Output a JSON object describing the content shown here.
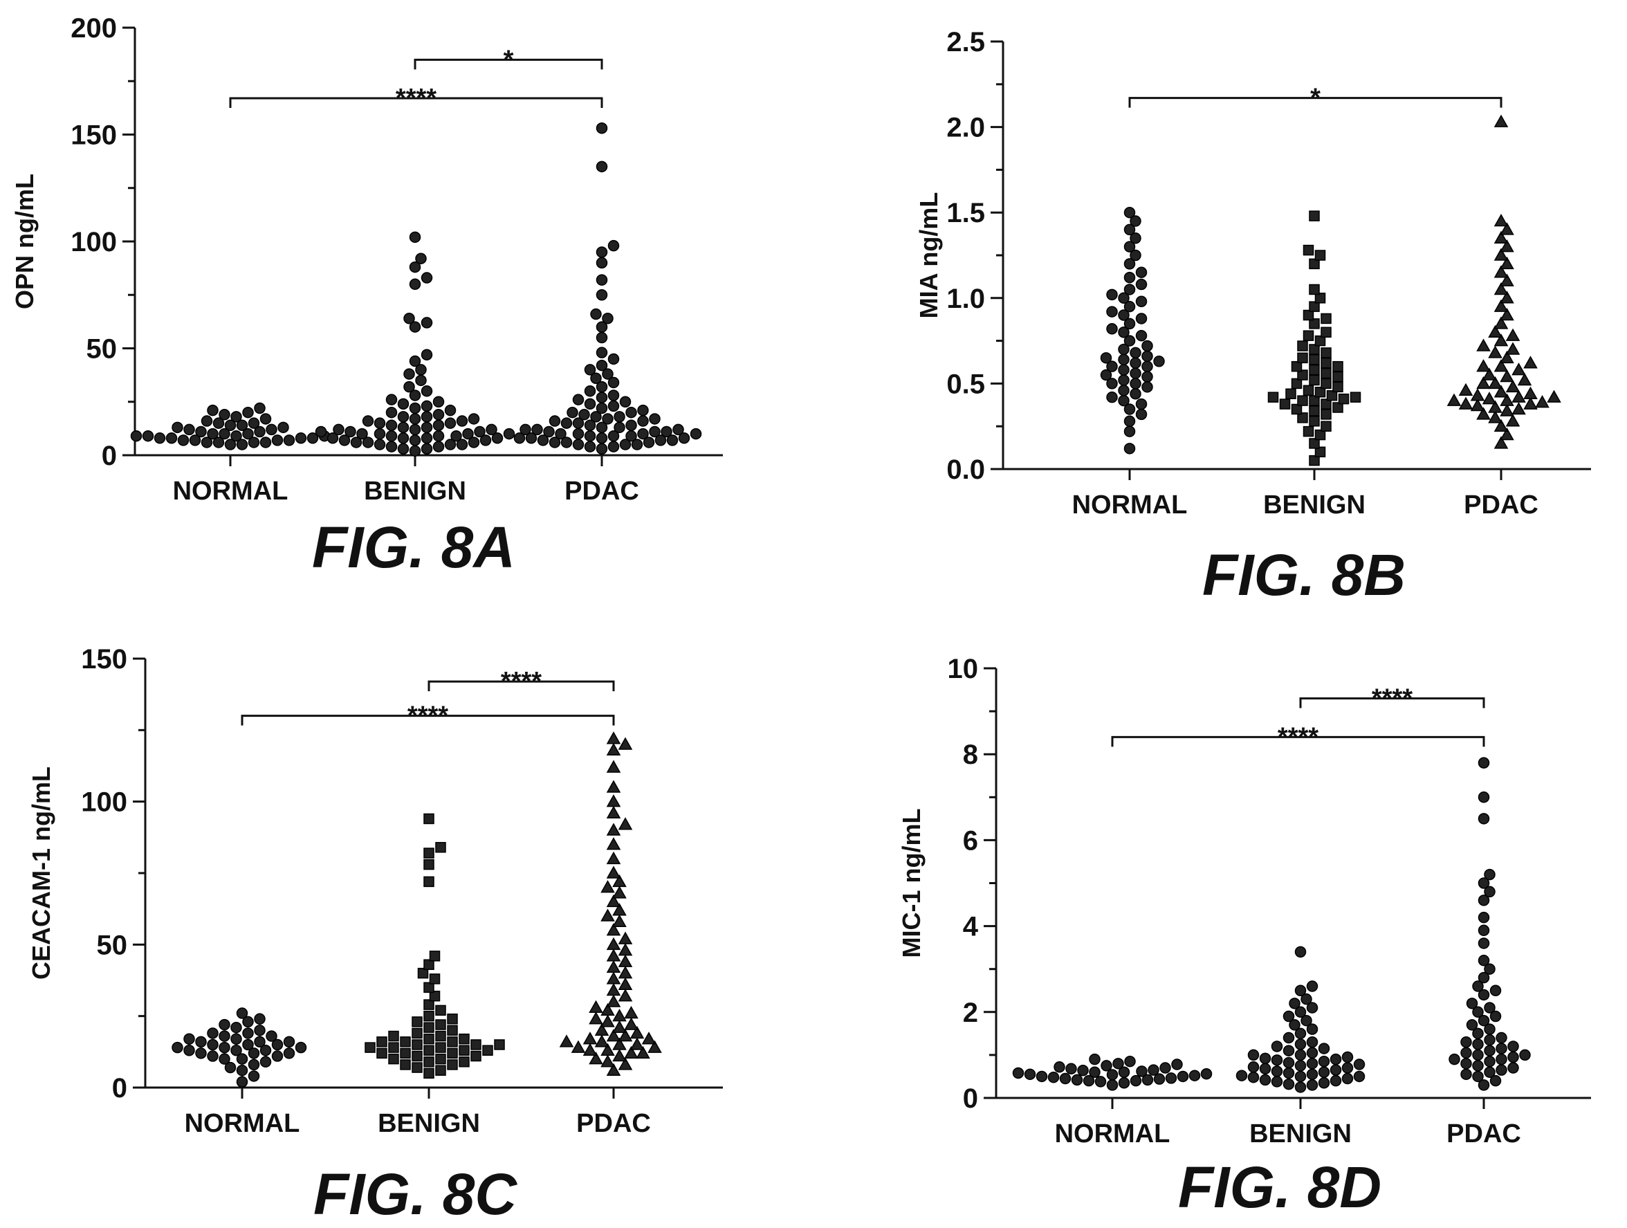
{
  "chart_data": [
    {
      "type": "scatter",
      "figure_label": "FIG. 8A",
      "ylabel": "OPN ng/mL",
      "xlabel": "",
      "ylim": [
        0,
        200
      ],
      "yticks": [
        0,
        50,
        100,
        150,
        200
      ],
      "categories": [
        "NORMAL",
        "BENIGN",
        "PDAC"
      ],
      "marker": "circle",
      "series": [
        {
          "name": "NORMAL",
          "values": [
            5,
            5,
            6,
            6,
            6,
            6,
            7,
            7,
            7,
            7,
            8,
            8,
            8,
            8,
            9,
            9,
            9,
            9,
            10,
            10,
            10,
            11,
            11,
            12,
            12,
            13,
            13,
            14,
            14,
            15,
            15,
            16,
            17,
            18,
            19,
            20,
            21,
            22
          ]
        },
        {
          "name": "BENIGN",
          "values": [
            2,
            3,
            3,
            4,
            4,
            5,
            5,
            5,
            6,
            6,
            6,
            7,
            7,
            7,
            8,
            8,
            8,
            8,
            9,
            9,
            9,
            10,
            10,
            10,
            10,
            11,
            11,
            11,
            12,
            12,
            12,
            13,
            13,
            14,
            14,
            15,
            15,
            16,
            16,
            17,
            17,
            18,
            18,
            19,
            20,
            21,
            22,
            23,
            24,
            25,
            26,
            28,
            30,
            32,
            35,
            38,
            40,
            44,
            47,
            60,
            62,
            64,
            80,
            83,
            88,
            92,
            102
          ]
        },
        {
          "name": "PDAC",
          "values": [
            3,
            4,
            4,
            5,
            5,
            5,
            6,
            6,
            6,
            7,
            7,
            7,
            8,
            8,
            8,
            8,
            9,
            9,
            9,
            10,
            10,
            10,
            10,
            11,
            11,
            11,
            12,
            12,
            12,
            13,
            13,
            14,
            14,
            15,
            15,
            16,
            16,
            17,
            17,
            18,
            18,
            19,
            20,
            20,
            21,
            22,
            23,
            24,
            25,
            26,
            27,
            28,
            30,
            32,
            34,
            36,
            38,
            40,
            42,
            45,
            48,
            55,
            60,
            64,
            66,
            75,
            82,
            90,
            95,
            98,
            135,
            153
          ]
        }
      ],
      "comparisons": [
        {
          "from": "BENIGN",
          "to": "PDAC",
          "label": "*",
          "y": 185
        },
        {
          "from": "NORMAL",
          "to": "PDAC",
          "label": "****",
          "y": 167
        }
      ]
    },
    {
      "type": "scatter",
      "figure_label": "FIG. 8B",
      "ylabel": "MIA ng/mL",
      "xlabel": "",
      "ylim": [
        0,
        2.5
      ],
      "yticks": [
        "0.0",
        "0.5",
        "1.0",
        "1.5",
        "2.0",
        "2.5"
      ],
      "categories": [
        "NORMAL",
        "BENIGN",
        "PDAC"
      ],
      "marker": "circle-square-triangle",
      "series": [
        {
          "name": "NORMAL",
          "values": [
            0.12,
            0.22,
            0.28,
            0.32,
            0.35,
            0.38,
            0.4,
            0.42,
            0.44,
            0.46,
            0.48,
            0.5,
            0.5,
            0.52,
            0.54,
            0.55,
            0.56,
            0.58,
            0.6,
            0.6,
            0.62,
            0.63,
            0.64,
            0.65,
            0.66,
            0.68,
            0.7,
            0.72,
            0.75,
            0.78,
            0.8,
            0.82,
            0.85,
            0.88,
            0.9,
            0.92,
            0.95,
            0.98,
            1.0,
            1.02,
            1.05,
            1.08,
            1.12,
            1.15,
            1.2,
            1.25,
            1.3,
            1.35,
            1.4,
            1.45,
            1.5
          ]
        },
        {
          "name": "BENIGN",
          "values": [
            0.05,
            0.1,
            0.15,
            0.2,
            0.22,
            0.25,
            0.28,
            0.3,
            0.32,
            0.34,
            0.35,
            0.36,
            0.38,
            0.38,
            0.4,
            0.4,
            0.41,
            0.42,
            0.42,
            0.43,
            0.44,
            0.45,
            0.46,
            0.48,
            0.5,
            0.5,
            0.52,
            0.54,
            0.55,
            0.56,
            0.58,
            0.6,
            0.6,
            0.62,
            0.64,
            0.65,
            0.68,
            0.7,
            0.72,
            0.75,
            0.78,
            0.8,
            0.85,
            0.88,
            0.9,
            0.95,
            1.0,
            1.05,
            1.2,
            1.25,
            1.28,
            1.48
          ]
        },
        {
          "name": "PDAC",
          "values": [
            0.15,
            0.2,
            0.25,
            0.28,
            0.3,
            0.32,
            0.34,
            0.35,
            0.36,
            0.37,
            0.38,
            0.38,
            0.39,
            0.4,
            0.4,
            0.41,
            0.42,
            0.42,
            0.43,
            0.44,
            0.45,
            0.46,
            0.48,
            0.5,
            0.5,
            0.52,
            0.54,
            0.55,
            0.58,
            0.6,
            0.6,
            0.62,
            0.65,
            0.68,
            0.7,
            0.72,
            0.75,
            0.78,
            0.8,
            0.85,
            0.9,
            0.95,
            1.0,
            1.05,
            1.1,
            1.15,
            1.2,
            1.25,
            1.3,
            1.35,
            1.4,
            1.45,
            2.03
          ]
        }
      ],
      "comparisons": [
        {
          "from": "NORMAL",
          "to": "PDAC",
          "label": "*",
          "y": 2.17
        }
      ]
    },
    {
      "type": "scatter",
      "figure_label": "FIG. 8C",
      "ylabel": "CEACAM-1 ng/mL",
      "xlabel": "",
      "ylim": [
        0,
        150
      ],
      "yticks": [
        0,
        50,
        100,
        150
      ],
      "categories": [
        "NORMAL",
        "BENIGN",
        "PDAC"
      ],
      "marker": "circle-square-triangle",
      "series": [
        {
          "name": "NORMAL",
          "values": [
            2,
            4,
            6,
            7,
            8,
            9,
            10,
            10,
            11,
            11,
            12,
            12,
            12,
            13,
            13,
            13,
            14,
            14,
            14,
            15,
            15,
            15,
            16,
            16,
            16,
            17,
            17,
            18,
            18,
            19,
            19,
            20,
            21,
            22,
            23,
            24,
            26
          ]
        },
        {
          "name": "BENIGN",
          "values": [
            5,
            6,
            7,
            8,
            8,
            9,
            9,
            10,
            10,
            11,
            11,
            12,
            12,
            12,
            13,
            13,
            13,
            14,
            14,
            14,
            15,
            15,
            15,
            16,
            16,
            16,
            17,
            17,
            18,
            18,
            19,
            20,
            21,
            22,
            23,
            24,
            25,
            27,
            29,
            32,
            35,
            38,
            40,
            43,
            46,
            72,
            78,
            82,
            84,
            94
          ]
        },
        {
          "name": "PDAC",
          "values": [
            6,
            8,
            9,
            10,
            11,
            12,
            12,
            13,
            13,
            14,
            14,
            15,
            15,
            16,
            16,
            17,
            17,
            18,
            18,
            19,
            20,
            21,
            22,
            23,
            24,
            25,
            26,
            27,
            28,
            30,
            32,
            34,
            36,
            38,
            40,
            42,
            44,
            46,
            48,
            50,
            52,
            55,
            58,
            60,
            62,
            65,
            68,
            70,
            72,
            75,
            80,
            85,
            90,
            92,
            96,
            100,
            105,
            112,
            118,
            120,
            122
          ]
        }
      ],
      "comparisons": [
        {
          "from": "BENIGN",
          "to": "PDAC",
          "label": "****",
          "y": 142
        },
        {
          "from": "NORMAL",
          "to": "PDAC",
          "label": "****",
          "y": 130
        }
      ]
    },
    {
      "type": "scatter",
      "figure_label": "FIG. 8D",
      "ylabel": "MIC-1 ng/mL",
      "xlabel": "",
      "ylim": [
        0,
        10
      ],
      "yticks": [
        0,
        2,
        4,
        6,
        8,
        10
      ],
      "categories": [
        "NORMAL",
        "BENIGN",
        "PDAC"
      ],
      "marker": "circle",
      "series": [
        {
          "name": "NORMAL",
          "values": [
            0.3,
            0.35,
            0.38,
            0.4,
            0.4,
            0.42,
            0.42,
            0.44,
            0.45,
            0.46,
            0.48,
            0.5,
            0.5,
            0.52,
            0.54,
            0.55,
            0.56,
            0.58,
            0.6,
            0.6,
            0.62,
            0.64,
            0.65,
            0.68,
            0.7,
            0.72,
            0.75,
            0.78,
            0.8,
            0.85,
            0.9
          ]
        },
        {
          "name": "BENIGN",
          "values": [
            0.25,
            0.3,
            0.32,
            0.35,
            0.38,
            0.4,
            0.42,
            0.45,
            0.48,
            0.5,
            0.5,
            0.52,
            0.55,
            0.58,
            0.6,
            0.62,
            0.65,
            0.68,
            0.7,
            0.72,
            0.75,
            0.78,
            0.8,
            0.82,
            0.85,
            0.88,
            0.9,
            0.92,
            0.95,
            1.0,
            1.0,
            1.05,
            1.1,
            1.15,
            1.2,
            1.25,
            1.3,
            1.4,
            1.5,
            1.6,
            1.7,
            1.8,
            1.9,
            2.0,
            2.1,
            2.2,
            2.3,
            2.5,
            2.6,
            3.4
          ]
        },
        {
          "name": "PDAC",
          "values": [
            0.3,
            0.4,
            0.5,
            0.55,
            0.6,
            0.65,
            0.7,
            0.75,
            0.8,
            0.85,
            0.9,
            0.9,
            0.95,
            1.0,
            1.0,
            1.05,
            1.1,
            1.15,
            1.2,
            1.25,
            1.3,
            1.35,
            1.4,
            1.5,
            1.6,
            1.7,
            1.8,
            1.9,
            2.0,
            2.1,
            2.2,
            2.4,
            2.5,
            2.6,
            2.8,
            3.0,
            3.2,
            3.6,
            3.9,
            4.2,
            4.6,
            4.8,
            5.0,
            5.2,
            6.5,
            7.0,
            7.8
          ]
        }
      ],
      "comparisons": [
        {
          "from": "BENIGN",
          "to": "PDAC",
          "label": "****",
          "y": 9.3
        },
        {
          "from": "NORMAL",
          "to": "PDAC",
          "label": "****",
          "y": 8.4
        }
      ]
    }
  ]
}
